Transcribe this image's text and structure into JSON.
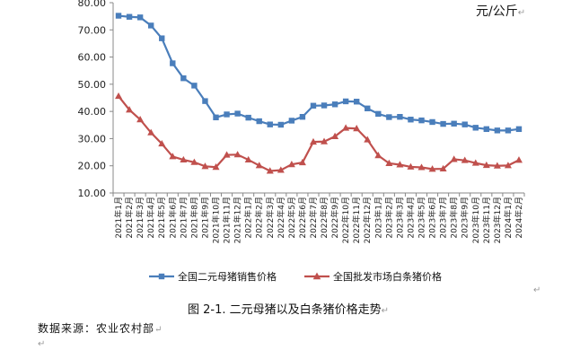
{
  "unit_label": "元/公斤",
  "para_mark": "↵",
  "figure_caption": "图 2-1.  二元母猪以及白条猪价格走势",
  "source_note": "数据来源：农业农村部",
  "chart_data": {
    "type": "line",
    "title": "",
    "xlabel": "",
    "ylabel": "",
    "ylim": [
      10,
      80
    ],
    "yticks": [
      "10.00",
      "20.00",
      "30.00",
      "40.00",
      "50.00",
      "60.00",
      "70.00",
      "80.00"
    ],
    "grid": false,
    "legend_position": "bottom",
    "categories": [
      "2021年1月",
      "2021年2月",
      "2021年3月",
      "2021年4月",
      "2021年5月",
      "2021年6月",
      "2021年7月",
      "2021年8月",
      "2021年9月",
      "2021年10月",
      "2021年11月",
      "2021年12月",
      "2022年1月",
      "2022年2月",
      "2022年3月",
      "2022年4月",
      "2022年5月",
      "2022年6月",
      "2022年7月",
      "2022年8月",
      "2022年9月",
      "2022年10月",
      "2022年11月",
      "2022年12月",
      "2023年1月",
      "2023年2月",
      "2023年3月",
      "2023年4月",
      "2023年5月",
      "2023年6月",
      "2023年7月",
      "2023年8月",
      "2023年9月",
      "2023年10月",
      "2023年11月",
      "2023年12月",
      "2024年1月",
      "2024年2月"
    ],
    "series": [
      {
        "name": "全国二元母猪销售价格",
        "color": "#4a7ebb",
        "marker": "square",
        "values": [
          75.2,
          74.8,
          74.6,
          71.6,
          66.9,
          57.7,
          52.2,
          49.5,
          43.8,
          37.8,
          38.9,
          39.2,
          37.7,
          36.4,
          35.2,
          35.1,
          36.6,
          38.0,
          42.1,
          42.2,
          42.6,
          43.7,
          43.6,
          41.1,
          39.1,
          37.9,
          38.0,
          37.0,
          36.7,
          36.1,
          35.4,
          35.5,
          35.2,
          34.0,
          33.5,
          33.0,
          33.0,
          33.5
        ]
      },
      {
        "name": "全国批发市场白条猪价格",
        "color": "#c0504d",
        "marker": "triangle",
        "values": [
          45.6,
          40.6,
          37.0,
          32.2,
          28.1,
          23.4,
          22.2,
          21.3,
          19.8,
          19.5,
          24.0,
          24.1,
          22.2,
          20.1,
          18.1,
          18.4,
          20.5,
          21.2,
          28.8,
          28.9,
          30.8,
          33.9,
          33.7,
          29.6,
          23.8,
          20.9,
          20.4,
          19.6,
          19.4,
          18.8,
          18.9,
          22.4,
          22.0,
          21.0,
          20.2,
          20.0,
          20.1,
          22.1
        ]
      }
    ]
  }
}
